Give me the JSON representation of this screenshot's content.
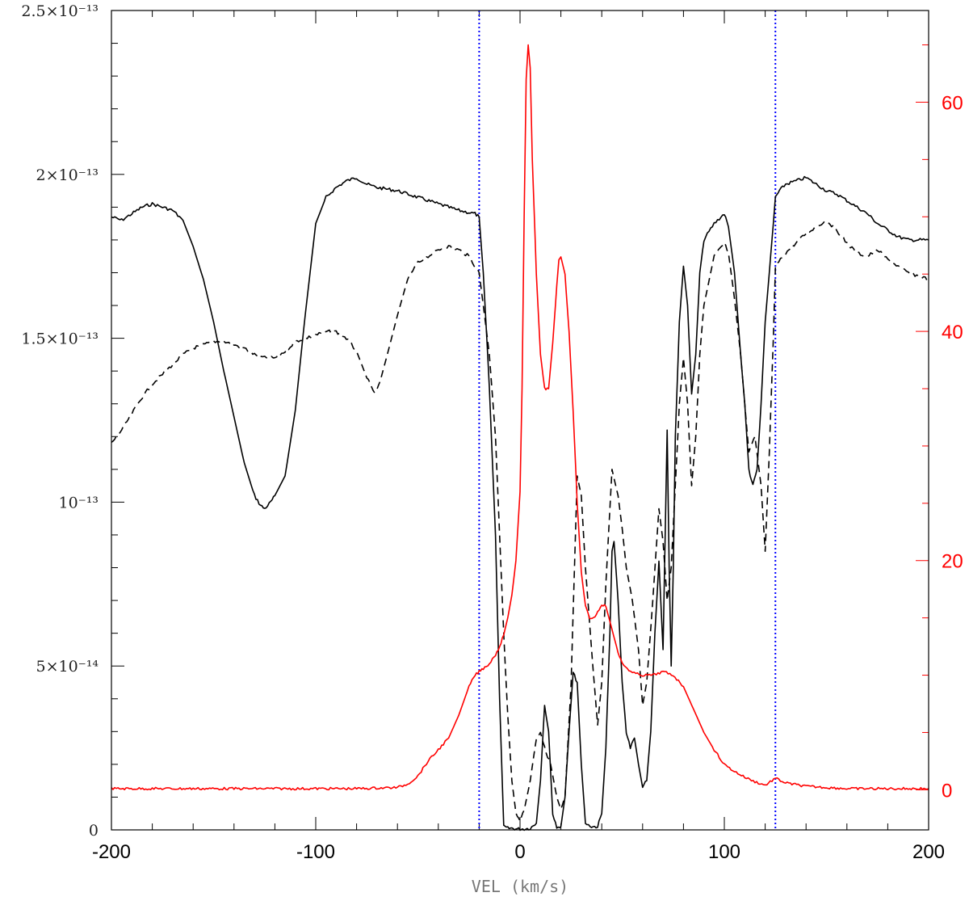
{
  "chart_data": {
    "type": "line",
    "title": "",
    "xlabel": "VEL (km/s)",
    "ylabel": "",
    "y2label": "",
    "xlim": [
      -200,
      200
    ],
    "ylim": [
      0,
      2.5e-13
    ],
    "y2lim": [
      -3.5,
      68
    ],
    "x_ticks": [
      -200,
      -100,
      0,
      100,
      200
    ],
    "x_tick_labels": [
      "-200",
      "-100",
      "0",
      "100",
      "200"
    ],
    "y_ticks": [
      0,
      5e-14,
      1e-13,
      1.5e-13,
      2e-13,
      2.5e-13
    ],
    "y_tick_labels": [
      "0",
      "5×10⁻¹⁴",
      "10⁻¹³",
      "1.5×10⁻¹³",
      "2×10⁻¹³",
      "2.5×10⁻¹³"
    ],
    "y2_ticks": [
      0,
      20,
      40,
      60
    ],
    "y2_tick_labels": [
      "0",
      "20",
      "40",
      "60"
    ],
    "vlines": [
      -20,
      125
    ],
    "grid": false,
    "colors": {
      "solid": "#000000",
      "dashed": "#000000",
      "red": "#ff0000",
      "vline": "#0000ff",
      "axis_title": "#777777"
    },
    "series": [
      {
        "style": "solid",
        "axis": "left",
        "x": [
          -200,
          -195,
          -190,
          -185,
          -180,
          -175,
          -170,
          -165,
          -160,
          -155,
          -150,
          -145,
          -140,
          -135,
          -130,
          -127,
          -125,
          -122,
          -120,
          -115,
          -110,
          -105,
          -100,
          -95,
          -90,
          -85,
          -80,
          -75,
          -70,
          -60,
          -50,
          -40,
          -30,
          -22,
          -20,
          -18,
          -15,
          -12,
          -10,
          -8,
          -6,
          -4,
          -2,
          0,
          2,
          5,
          8,
          10,
          12,
          14,
          16,
          18,
          20,
          22,
          24,
          26,
          28,
          30,
          32,
          35,
          38,
          40,
          42,
          44,
          45,
          46,
          48,
          50,
          52,
          54,
          56,
          58,
          60,
          62,
          64,
          66,
          68,
          70,
          72,
          73,
          74,
          75,
          76,
          78,
          80,
          82,
          84,
          86,
          88,
          90,
          95,
          100,
          102,
          105,
          108,
          110,
          112,
          114,
          116,
          118,
          120,
          122,
          124,
          125,
          127,
          130,
          135,
          140,
          145,
          150,
          155,
          160,
          165,
          170,
          175,
          180,
          185,
          190,
          195,
          200
        ],
        "y": [
          1.87e-13,
          1.86e-13,
          1.88e-13,
          1.9e-13,
          1.91e-13,
          1.9e-13,
          1.89e-13,
          1.86e-13,
          1.78e-13,
          1.68e-13,
          1.55e-13,
          1.4e-13,
          1.26e-13,
          1.12e-13,
          1.02e-13,
          9.9e-14,
          9.8e-14,
          1e-13,
          1.02e-13,
          1.08e-13,
          1.28e-13,
          1.58e-13,
          1.85e-13,
          1.93e-13,
          1.96e-13,
          1.98e-13,
          1.99e-13,
          1.97e-13,
          1.96e-13,
          1.95e-13,
          1.93e-13,
          1.91e-13,
          1.89e-13,
          1.88e-13,
          1.87e-13,
          1.7e-13,
          1.35e-13,
          9e-14,
          4e-14,
          1e-15,
          5e-16,
          5e-16,
          3e-16,
          3e-16,
          3e-16,
          5e-16,
          2e-15,
          1.5e-14,
          3.8e-14,
          3e-14,
          5e-15,
          1e-15,
          1e-15,
          1e-14,
          3e-14,
          4.8e-14,
          4.5e-14,
          2e-14,
          2e-15,
          1e-15,
          1e-15,
          5e-15,
          2.5e-14,
          6e-14,
          8.5e-14,
          8.8e-14,
          7e-14,
          4.5e-14,
          3e-14,
          2.5e-14,
          2.8e-14,
          2e-14,
          1.3e-14,
          1.5e-14,
          3e-14,
          6e-14,
          8.2e-14,
          5.5e-14,
          1.22e-13,
          8e-14,
          5e-14,
          8e-14,
          1.2e-13,
          1.55e-13,
          1.72e-13,
          1.6e-13,
          1.33e-13,
          1.45e-13,
          1.7e-13,
          1.8e-13,
          1.85e-13,
          1.88e-13,
          1.84e-13,
          1.7e-13,
          1.45e-13,
          1.3e-13,
          1.1e-13,
          1.05e-13,
          1.1e-13,
          1.3e-13,
          1.55e-13,
          1.7e-13,
          1.85e-13,
          1.93e-13,
          1.95e-13,
          1.97e-13,
          1.98e-13,
          1.99e-13,
          1.97e-13,
          1.95e-13,
          1.94e-13,
          1.92e-13,
          1.9e-13,
          1.88e-13,
          1.85e-13,
          1.83e-13,
          1.81e-13,
          1.8e-13,
          1.8e-13,
          1.8e-13
        ]
      },
      {
        "style": "dashed",
        "axis": "left",
        "x": [
          -200,
          -195,
          -190,
          -185,
          -180,
          -175,
          -170,
          -165,
          -160,
          -155,
          -150,
          -145,
          -140,
          -135,
          -130,
          -125,
          -120,
          -115,
          -110,
          -105,
          -100,
          -95,
          -90,
          -85,
          -80,
          -75,
          -72,
          -70,
          -68,
          -65,
          -60,
          -55,
          -50,
          -45,
          -40,
          -35,
          -30,
          -25,
          -20,
          -18,
          -15,
          -12,
          -10,
          -8,
          -6,
          -4,
          -2,
          0,
          2,
          5,
          8,
          10,
          12,
          15,
          18,
          20,
          22,
          25,
          28,
          30,
          32,
          35,
          38,
          40,
          42,
          45,
          48,
          50,
          52,
          55,
          58,
          60,
          62,
          65,
          68,
          70,
          72,
          74,
          76,
          78,
          80,
          82,
          84,
          86,
          88,
          90,
          95,
          100,
          102,
          105,
          108,
          110,
          112,
          115,
          118,
          120,
          122,
          124,
          125,
          130,
          135,
          140,
          145,
          150,
          155,
          160,
          165,
          170,
          175,
          180,
          185,
          190,
          195,
          200
        ],
        "y": [
          1.18e-13,
          1.22e-13,
          1.27e-13,
          1.32e-13,
          1.36e-13,
          1.39e-13,
          1.42e-13,
          1.45e-13,
          1.47e-13,
          1.48e-13,
          1.49e-13,
          1.49e-13,
          1.48e-13,
          1.47e-13,
          1.45e-13,
          1.44e-13,
          1.44e-13,
          1.46e-13,
          1.49e-13,
          1.5e-13,
          1.51e-13,
          1.52e-13,
          1.52e-13,
          1.5e-13,
          1.46e-13,
          1.38e-13,
          1.34e-13,
          1.34e-13,
          1.38e-13,
          1.45e-13,
          1.57e-13,
          1.68e-13,
          1.73e-13,
          1.75e-13,
          1.77e-13,
          1.78e-13,
          1.77e-13,
          1.75e-13,
          1.7e-13,
          1.6e-13,
          1.45e-13,
          1.2e-13,
          9e-14,
          6e-14,
          3.5e-14,
          1.5e-14,
          5e-15,
          3e-15,
          6e-15,
          1.5e-14,
          2.8e-14,
          3e-14,
          2.5e-14,
          2e-14,
          1e-14,
          6e-15,
          1e-14,
          4.5e-14,
          1.08e-13,
          1.02e-13,
          8e-14,
          5.5e-14,
          3.2e-14,
          4.5e-14,
          7.5e-14,
          1.1e-13,
          1.02e-13,
          9.2e-14,
          8e-14,
          7e-14,
          5.5e-14,
          3.8e-14,
          4.5e-14,
          7e-14,
          9.8e-14,
          8.8e-14,
          7e-14,
          8e-14,
          1.05e-13,
          1.3e-13,
          1.44e-13,
          1.3e-13,
          1.05e-13,
          1.2e-13,
          1.45e-13,
          1.6e-13,
          1.75e-13,
          1.79e-13,
          1.76e-13,
          1.62e-13,
          1.45e-13,
          1.3e-13,
          1.15e-13,
          1.2e-13,
          1.05e-13,
          8.5e-14,
          1.15e-13,
          1.5e-13,
          1.72e-13,
          1.76e-13,
          1.79e-13,
          1.82e-13,
          1.84e-13,
          1.86e-13,
          1.83e-13,
          1.79e-13,
          1.76e-13,
          1.75e-13,
          1.77e-13,
          1.74e-13,
          1.72e-13,
          1.7e-13,
          1.69e-13,
          1.68e-13
        ]
      },
      {
        "style": "solid",
        "axis": "right",
        "x": [
          -200,
          -180,
          -160,
          -140,
          -120,
          -100,
          -80,
          -60,
          -55,
          -50,
          -45,
          -40,
          -35,
          -30,
          -25,
          -22,
          -20,
          -18,
          -15,
          -12,
          -10,
          -8,
          -6,
          -4,
          -2,
          0,
          1,
          2,
          3,
          4,
          5,
          6,
          8,
          10,
          12,
          14,
          16,
          18,
          19,
          20,
          22,
          24,
          26,
          28,
          30,
          32,
          34,
          36,
          38,
          40,
          42,
          45,
          48,
          50,
          55,
          60,
          65,
          70,
          75,
          80,
          85,
          90,
          95,
          100,
          105,
          110,
          115,
          120,
          125,
          130,
          140,
          150,
          160,
          170,
          180,
          190,
          200
        ],
        "y": [
          0.1,
          0.1,
          0.1,
          0.1,
          0.1,
          0.1,
          0.1,
          0.2,
          0.5,
          1.2,
          2.5,
          3.5,
          4.5,
          6.5,
          9,
          10,
          10.3,
          10.6,
          11,
          11.8,
          12.5,
          13.5,
          15,
          17,
          20,
          26,
          35,
          50,
          62,
          65,
          63,
          55,
          45,
          38,
          35,
          35,
          39,
          44,
          46.3,
          46.5,
          45,
          40,
          33,
          25,
          19,
          16,
          15,
          15,
          15.5,
          16.2,
          16,
          14,
          12,
          11,
          10.2,
          10,
          10,
          10.3,
          10,
          9,
          7,
          5,
          3.5,
          2.2,
          1.6,
          1.1,
          0.7,
          0.4,
          1,
          0.6,
          0.3,
          0.2,
          0.1,
          0.1,
          0.1,
          0.1,
          0.1
        ]
      }
    ]
  }
}
